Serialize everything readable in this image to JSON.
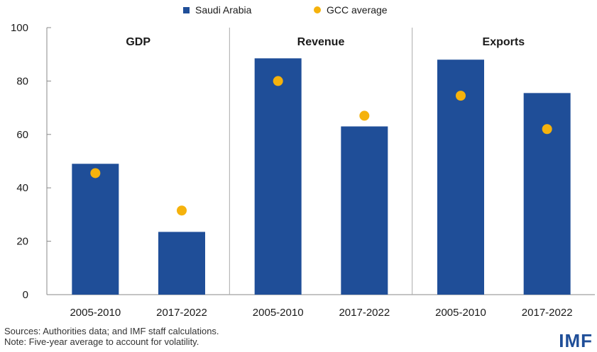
{
  "chart_data": {
    "type": "bar",
    "panels": [
      "GDP",
      "Revenue",
      "Exports"
    ],
    "categories": [
      "2005-2010",
      "2017-2022",
      "2005-2010",
      "2017-2022",
      "2005-2010",
      "2017-2022"
    ],
    "series": [
      {
        "name": "Saudi Arabia",
        "type": "bar",
        "color": "#1f4e98",
        "values": [
          49,
          23.5,
          88.5,
          63,
          88,
          75.5
        ]
      },
      {
        "name": "GCC average",
        "type": "scatter",
        "color": "#f5b20c",
        "values": [
          45.5,
          31.5,
          80,
          67,
          74.5,
          62
        ]
      }
    ],
    "ylim": [
      0,
      100
    ],
    "yticks": [
      0,
      20,
      40,
      60,
      80,
      100
    ],
    "legend_position": "top-center",
    "grid": false
  },
  "legend": {
    "s1": "Saudi Arabia",
    "s2": "GCC average"
  },
  "footer": {
    "sources": "Sources: Authorities data; and IMF staff calculations.",
    "note": "Note: Five-year average to account for volatility.",
    "logo": "IMF"
  }
}
